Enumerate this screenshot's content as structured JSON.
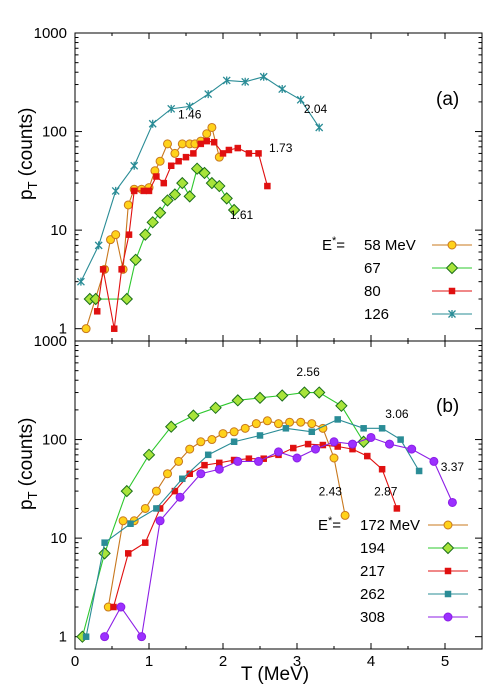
{
  "figure": {
    "x_axis_title": "T  (MeV)",
    "y_axis_title_main": "p",
    "y_axis_title_sub": "T",
    "y_axis_title_rest": " (counts)"
  },
  "chart_data": [
    {
      "type": "line",
      "panel_label": "(a)",
      "xlim": [
        0,
        5.5
      ],
      "ylim": [
        0.75,
        1000
      ],
      "y_scale": "log",
      "x_ticks": [
        "0",
        "1",
        "2",
        "3",
        "4",
        "5"
      ],
      "y_ticks": [
        "1",
        "10",
        "100",
        "1000"
      ],
      "grid": false,
      "legend_prefix": "E* =",
      "legend_position": "right",
      "series": [
        {
          "name": "58 MeV",
          "color": "#c8781e",
          "fill": "#ffd21a",
          "marker": "circle",
          "x": [
            0.15,
            0.4,
            0.48,
            0.55,
            0.65,
            0.72,
            0.8,
            0.9,
            1.0,
            1.08,
            1.15,
            1.25,
            1.35,
            1.45,
            1.55,
            1.62,
            1.7,
            1.78,
            1.85,
            1.95
          ],
          "y": [
            1,
            4,
            8,
            9,
            4,
            18,
            26,
            26,
            27,
            40,
            50,
            75,
            60,
            75,
            75,
            75,
            80,
            95,
            110,
            55
          ]
        },
        {
          "name": "67",
          "color": "#2ec82e",
          "fill": "#a8e43a",
          "marker": "diamond",
          "x": [
            0.2,
            0.28,
            0.7,
            0.82,
            0.95,
            1.05,
            1.15,
            1.25,
            1.35,
            1.45,
            1.55,
            1.65,
            1.75,
            1.85,
            1.95,
            2.05,
            2.15
          ],
          "y": [
            2,
            2,
            2,
            5,
            9,
            12,
            15,
            20,
            23,
            30,
            22,
            42,
            38,
            30,
            28,
            21,
            16
          ]
        },
        {
          "name": "80",
          "color": "#e01010",
          "fill": "#e01010",
          "marker": "square",
          "x": [
            0.3,
            0.38,
            0.53,
            0.63,
            0.73,
            0.8,
            0.93,
            1.0,
            1.1,
            1.2,
            1.3,
            1.4,
            1.5,
            1.6,
            1.7,
            1.78,
            1.88,
            2.0,
            2.08,
            2.2,
            2.35,
            2.48,
            2.6
          ],
          "y": [
            1.5,
            4,
            1,
            4,
            9,
            25,
            25,
            25,
            35,
            30,
            45,
            50,
            55,
            60,
            75,
            80,
            78,
            60,
            65,
            68,
            60,
            60,
            28
          ]
        },
        {
          "name": "126",
          "color": "#2a8c96",
          "fill": "#2a8c96",
          "marker": "star",
          "x": [
            0.08,
            0.32,
            0.55,
            0.8,
            1.05,
            1.3,
            1.55,
            1.8,
            2.05,
            2.3,
            2.55,
            2.8,
            3.05,
            3.3
          ],
          "y": [
            3,
            7,
            25,
            45,
            120,
            170,
            180,
            240,
            330,
            320,
            360,
            270,
            210,
            110
          ]
        }
      ],
      "annotations": [
        {
          "text": "1.46",
          "x": 1.55,
          "y": 135
        },
        {
          "text": "2.04",
          "x": 3.25,
          "y": 155
        },
        {
          "text": "1.73",
          "x": 2.78,
          "y": 62
        },
        {
          "text": "1.61",
          "x": 2.25,
          "y": 13
        }
      ]
    },
    {
      "type": "line",
      "panel_label": "(b)",
      "xlim": [
        0,
        5.5
      ],
      "ylim": [
        0.75,
        1000
      ],
      "y_scale": "log",
      "x_ticks": [
        "0",
        "1",
        "2",
        "3",
        "4",
        "5"
      ],
      "y_ticks": [
        "1",
        "10",
        "100",
        "1000"
      ],
      "grid": false,
      "legend_prefix": "E* =",
      "legend_position": "bottom-right",
      "series": [
        {
          "name": "172 MeV",
          "color": "#c8781e",
          "fill": "#ffd21a",
          "marker": "circle",
          "x": [
            0.45,
            0.65,
            0.8,
            0.95,
            1.1,
            1.25,
            1.4,
            1.55,
            1.7,
            1.85,
            2.0,
            2.15,
            2.3,
            2.45,
            2.6,
            2.75,
            2.9,
            3.05,
            3.2,
            3.35,
            3.5,
            3.65
          ],
          "y": [
            2,
            15,
            15,
            20,
            30,
            45,
            60,
            80,
            95,
            100,
            115,
            120,
            130,
            145,
            155,
            145,
            150,
            150,
            145,
            130,
            65,
            17
          ]
        },
        {
          "name": "194",
          "color": "#2ec82e",
          "fill": "#a8e43a",
          "marker": "diamond",
          "x": [
            0.1,
            0.4,
            0.7,
            1.0,
            1.3,
            1.6,
            1.9,
            2.2,
            2.5,
            2.8,
            3.1,
            3.3,
            3.6,
            3.9
          ],
          "y": [
            1,
            7,
            30,
            70,
            135,
            175,
            210,
            250,
            265,
            280,
            300,
            300,
            220,
            95
          ]
        },
        {
          "name": "217",
          "color": "#e01010",
          "fill": "#e01010",
          "marker": "square",
          "x": [
            0.52,
            0.72,
            0.95,
            1.15,
            1.35,
            1.55,
            1.75,
            1.95,
            2.15,
            2.35,
            2.55,
            2.75,
            2.95,
            3.15,
            3.35,
            3.55,
            3.75,
            3.95,
            4.15,
            4.35
          ],
          "y": [
            2,
            7,
            9,
            20,
            30,
            45,
            55,
            58,
            62,
            64,
            64,
            70,
            82,
            90,
            88,
            85,
            80,
            68,
            50,
            20
          ]
        },
        {
          "name": "262",
          "color": "#2a8c96",
          "fill": "#2a8c96",
          "marker": "square",
          "x": [
            0.15,
            0.4,
            0.75,
            1.1,
            1.45,
            1.8,
            2.15,
            2.5,
            2.85,
            3.2,
            3.55,
            3.9,
            4.15,
            4.4,
            4.65
          ],
          "y": [
            1,
            9,
            14,
            20,
            40,
            70,
            95,
            110,
            130,
            120,
            160,
            130,
            130,
            100,
            48
          ]
        },
        {
          "name": "308",
          "color": "#8c1ee6",
          "fill": "#9b30ff",
          "marker": "circle",
          "x": [
            0.4,
            0.62,
            0.9,
            1.15,
            1.42,
            1.7,
            1.95,
            2.2,
            2.48,
            2.75,
            3.0,
            3.25,
            3.5,
            3.75,
            4.0,
            4.25,
            4.55,
            4.85,
            5.1
          ],
          "y": [
            1,
            2,
            1,
            15,
            26,
            45,
            50,
            60,
            60,
            75,
            65,
            80,
            95,
            90,
            105,
            90,
            80,
            60,
            23
          ]
        }
      ],
      "annotations": [
        {
          "text": "2.56",
          "x": 3.15,
          "y": 440
        },
        {
          "text": "3.06",
          "x": 4.35,
          "y": 165
        },
        {
          "text": "2.43",
          "x": 3.45,
          "y": 27
        },
        {
          "text": "2.87",
          "x": 4.2,
          "y": 27
        },
        {
          "text": "3.37",
          "x": 5.1,
          "y": 48
        }
      ]
    }
  ]
}
